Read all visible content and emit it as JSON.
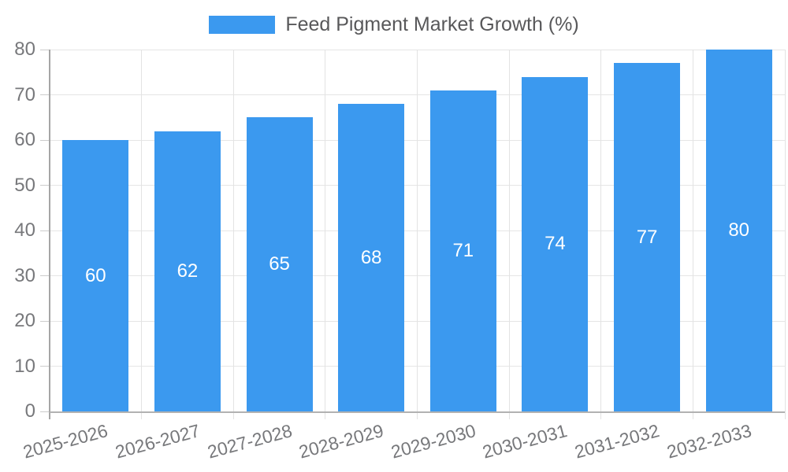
{
  "legend": {
    "position": "top"
  },
  "chart_data": {
    "type": "bar",
    "title": "Feed Pigment Market Growth (%)",
    "categories": [
      "2025-2026",
      "2026-2027",
      "2027-2028",
      "2028-2029",
      "2029-2030",
      "2030-2031",
      "2031-2032",
      "2032-2033"
    ],
    "values": [
      60,
      62,
      65,
      68,
      71,
      74,
      77,
      80
    ],
    "xlabel": "",
    "ylabel": "",
    "ylim": [
      0,
      80
    ],
    "yticks": [
      0,
      10,
      20,
      30,
      40,
      50,
      60,
      70,
      80
    ],
    "grid": true,
    "legend_position": "top",
    "bar_color": "#3B99EF",
    "value_label_color": "#FFFFFF",
    "axis_text_color": "#77787B",
    "title_text_color": "#58585A",
    "grid_color": "#E5E5E5"
  }
}
